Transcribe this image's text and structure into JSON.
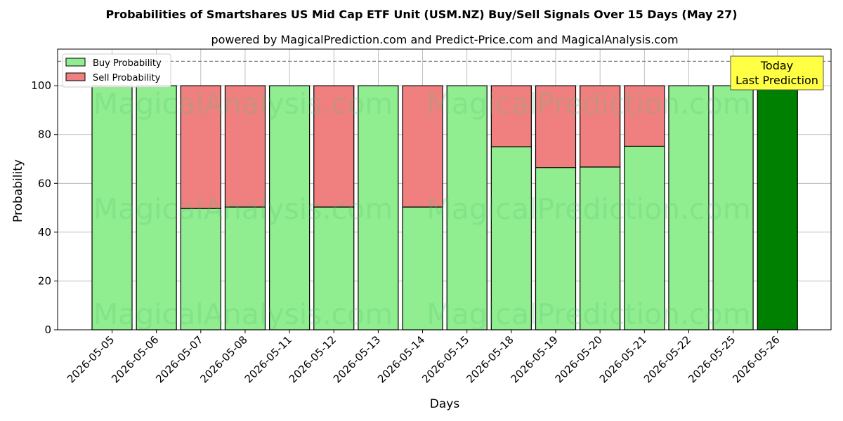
{
  "chart_data": {
    "type": "bar",
    "stacked": true,
    "title": "Probabilities of Smartshares US Mid Cap ETF Unit (USM.NZ) Buy/Sell Signals Over 15 Days (May 27)",
    "subtitle": "powered by MagicalPrediction.com and Predict-Price.com and MagicalAnalysis.com",
    "xlabel": "Days",
    "ylabel": "Probability",
    "ylim": [
      0,
      115
    ],
    "yticks": [
      0,
      20,
      40,
      60,
      80,
      100
    ],
    "reference_line": 110,
    "grid": true,
    "legend_position": "top-left",
    "categories": [
      "2026-05-05",
      "2026-05-06",
      "2026-05-07",
      "2026-05-08",
      "2026-05-11",
      "2026-05-12",
      "2026-05-13",
      "2026-05-14",
      "2026-05-15",
      "2026-05-18",
      "2026-05-19",
      "2026-05-20",
      "2026-05-21",
      "2026-05-22",
      "2026-05-25",
      "2026-05-26"
    ],
    "series": [
      {
        "name": "Buy Probability",
        "color": "#90ee90",
        "values": [
          100,
          100,
          49.7,
          50.3,
          100,
          50.3,
          100,
          50.3,
          100,
          75,
          66.5,
          66.7,
          75.2,
          100,
          100,
          100
        ]
      },
      {
        "name": "Sell Probability",
        "color": "#f08080",
        "values": [
          0,
          0,
          50.3,
          49.7,
          0,
          49.7,
          0,
          49.7,
          0,
          25,
          33.5,
          33.3,
          24.8,
          0,
          0,
          0
        ]
      }
    ],
    "highlight": {
      "index": 15,
      "color": "#008000",
      "label_lines": [
        "Today",
        "Last Prediction"
      ]
    },
    "watermarks": [
      "MagicalAnalysis.com",
      "MagicalPrediction.com"
    ]
  }
}
